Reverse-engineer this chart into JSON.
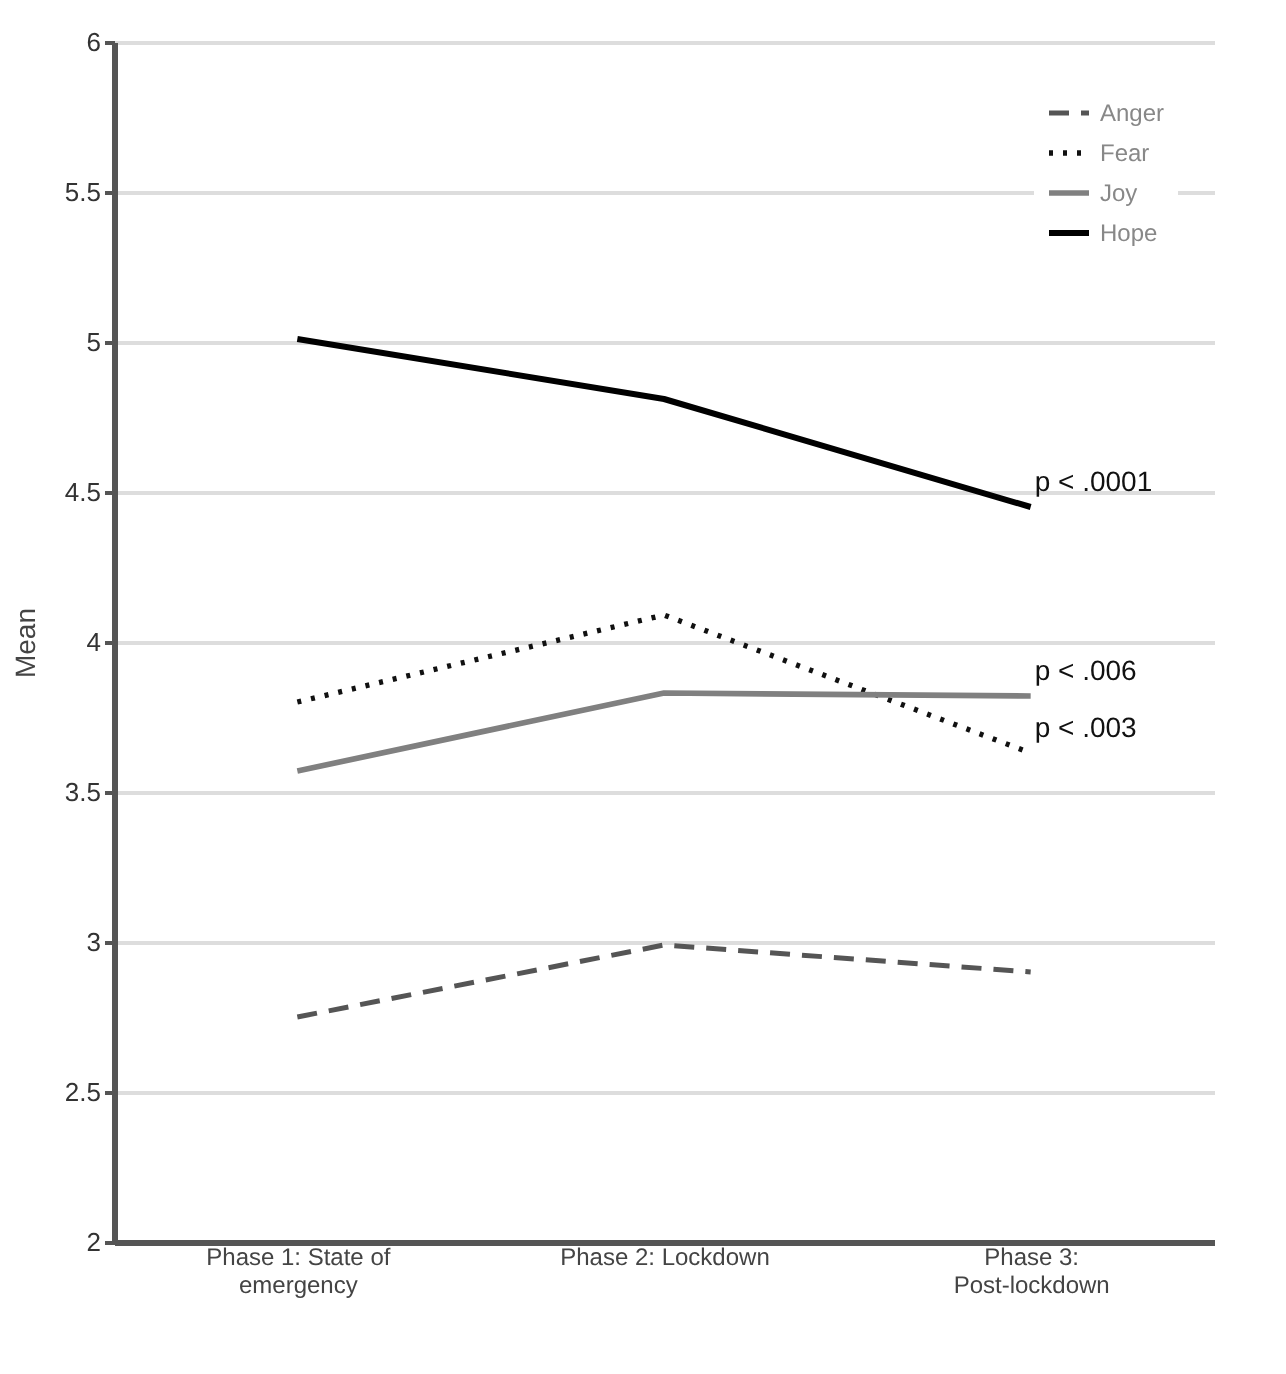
{
  "chart_data": {
    "type": "line",
    "ylabel": "Mean",
    "categories": [
      "Phase 1: State of emergency",
      "Phase 2: Lockdown",
      "Phase 3: Post-lockdown"
    ],
    "series": [
      {
        "name": "Anger",
        "color": "#555555",
        "line_style": "dashed",
        "values": [
          2.75,
          2.99,
          2.9
        ]
      },
      {
        "name": "Fear",
        "color": "#111111",
        "line_style": "dotted",
        "values": [
          3.8,
          4.09,
          3.63
        ]
      },
      {
        "name": "Joy",
        "color": "#808080",
        "line_style": "solid",
        "values": [
          3.57,
          3.83,
          3.82
        ]
      },
      {
        "name": "Hope",
        "color": "#000000",
        "line_style": "solid",
        "values": [
          5.01,
          4.81,
          4.45
        ]
      }
    ],
    "ylim": [
      2,
      6
    ],
    "yticks": [
      2,
      2.5,
      3,
      3.5,
      4,
      4.5,
      5,
      5.5,
      6
    ],
    "grid": "y",
    "legend": "top right",
    "marker": "none",
    "annotations": [
      {
        "text": "p < .0001",
        "x": "Phase 3: Post-lockdown",
        "y": 4.45
      },
      {
        "text": "p < .006",
        "x": "Phase 3: Post-lockdown",
        "y": 3.82
      },
      {
        "text": "p < .003",
        "x": "Phase 3: Post-lockdown",
        "y": 3.63
      }
    ]
  }
}
